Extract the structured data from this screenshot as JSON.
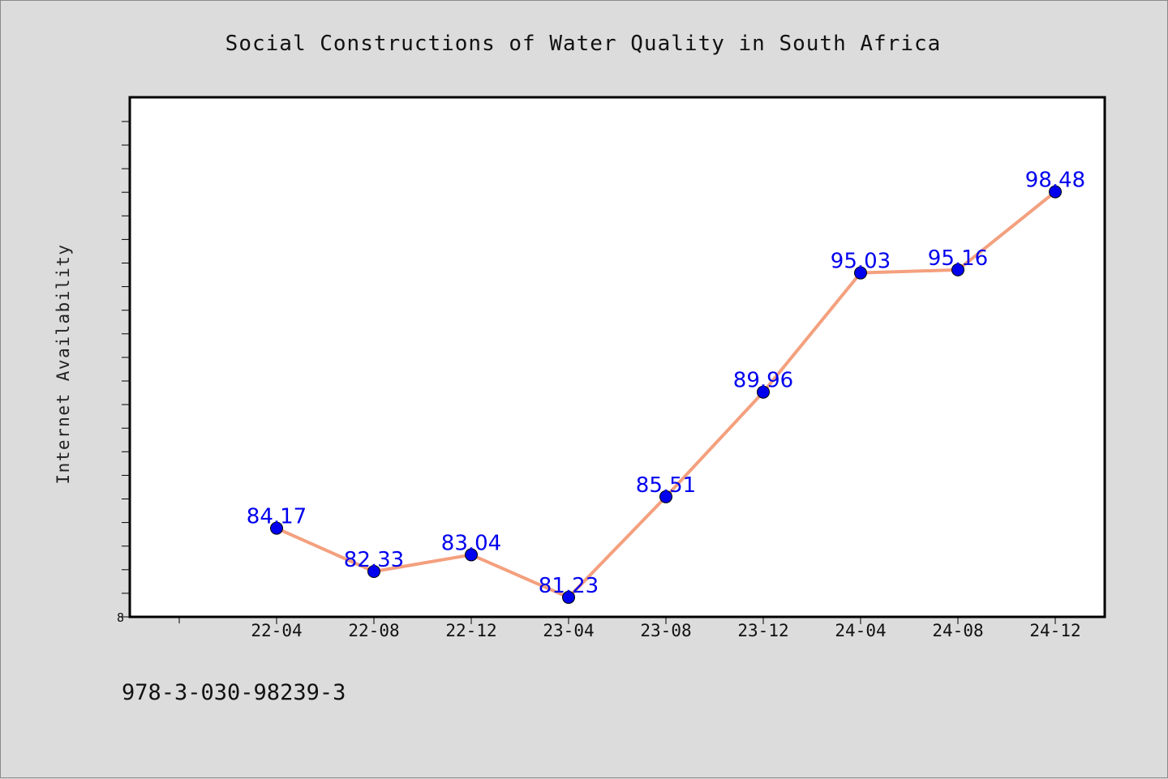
{
  "chart_data": {
    "type": "line",
    "title": "Social Constructions of Water Quality in South Africa",
    "xlabel": "",
    "ylabel": "Internet Availability",
    "categories": [
      "22-04",
      "22-08",
      "22-12",
      "23-04",
      "23-08",
      "23-12",
      "24-04",
      "24-08",
      "24-12"
    ],
    "series": [
      {
        "values": [
          84.17,
          82.33,
          83.04,
          81.23,
          85.51,
          89.96,
          95.03,
          95.16,
          98.48
        ],
        "data_labels": [
          "84.17",
          "82.33",
          "83.04",
          "81.23",
          "85.51",
          "89.96",
          "95.03",
          "95.16",
          "98.48"
        ]
      }
    ],
    "y_tick_label": "8",
    "ylim": [
      80.4,
      102.5
    ],
    "grid": false,
    "line_color": "#f4a07e",
    "marker_color": "#0000ee",
    "label_color": "#0000ee"
  },
  "footer": {
    "isbn": "978-3-030-98239-3"
  }
}
